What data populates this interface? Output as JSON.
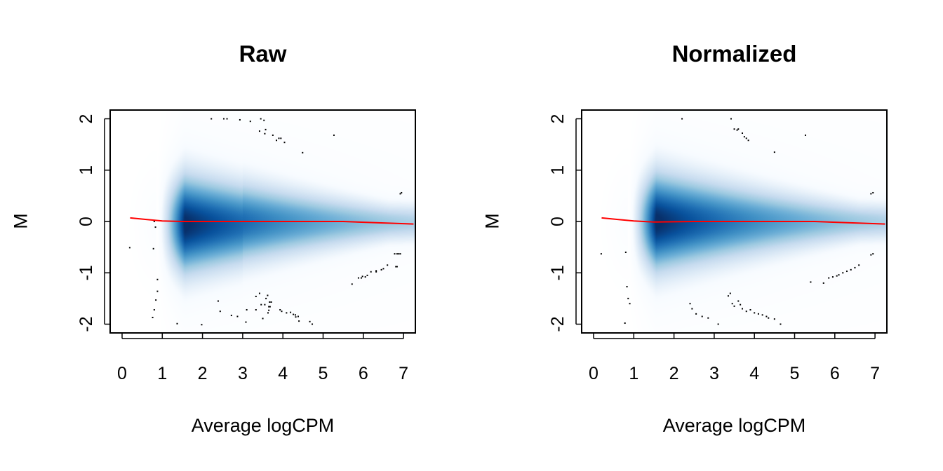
{
  "chart_data": [
    {
      "type": "scatter",
      "subtype": "smoothScatter density (MA plot)",
      "title": "Raw",
      "xlabel": "Average logCPM",
      "ylabel": "M",
      "xlim": [
        0,
        7.25
      ],
      "ylim": [
        -2,
        2
      ],
      "xticks": [
        "0",
        "1",
        "2",
        "3",
        "4",
        "5",
        "6",
        "7"
      ],
      "yticks": [
        "-2",
        "-1",
        "0",
        "1",
        "2"
      ],
      "density_color_low": "#ffffff",
      "density_color_high": "#08306b",
      "trend_color": "#ff0000",
      "trend_line": {
        "x": [
          0.2,
          0.6,
          1.0,
          1.5,
          2.5,
          3.5,
          4.5,
          5.5,
          6.2,
          7.25
        ],
        "y": [
          0.07,
          0.04,
          0.01,
          0.0,
          0.0,
          0.0,
          0.0,
          0.0,
          -0.02,
          -0.05
        ]
      },
      "center_shift": -0.05,
      "outliers": {
        "x": [
          2.22,
          2.53,
          2.61,
          2.93,
          3.19,
          3.45,
          3.53,
          3.42,
          3.57,
          3.55,
          3.75,
          3.9,
          3.95,
          3.84,
          4.04,
          4.49,
          5.27,
          6.95,
          6.92,
          0.19,
          0.78,
          0.8,
          0.83,
          0.88,
          0.88,
          0.84,
          0.8,
          0.76,
          1.37,
          1.98,
          2.39,
          2.44,
          2.72,
          2.87,
          3.08,
          3.1,
          3.33,
          3.42,
          3.33,
          3.58,
          3.62,
          3.67,
          3.71,
          3.46,
          3.55,
          3.65,
          3.68,
          3.65,
          3.63,
          3.5,
          3.93,
          3.97,
          4.09,
          4.19,
          4.26,
          4.31,
          4.32,
          4.38,
          4.4,
          4.67,
          4.73,
          5.72,
          5.88,
          5.95,
          5.98,
          6.05,
          6.1,
          6.19,
          6.32,
          6.32,
          6.45,
          6.5,
          6.6,
          6.81,
          6.84,
          6.78,
          6.84,
          6.88,
          6.92
        ],
        "y": [
          2.0,
          2.0,
          2.0,
          1.98,
          1.95,
          2.0,
          1.97,
          1.76,
          1.79,
          1.71,
          1.68,
          1.62,
          1.62,
          1.58,
          1.54,
          1.34,
          1.68,
          0.56,
          0.54,
          -0.51,
          -0.53,
          0.0,
          -0.11,
          -1.13,
          -1.36,
          -1.53,
          -1.72,
          -1.87,
          -1.99,
          -2.01,
          -1.55,
          -1.75,
          -1.83,
          -1.85,
          -1.96,
          -1.72,
          -1.72,
          -1.4,
          -1.46,
          -1.5,
          -1.44,
          -1.57,
          -1.57,
          -1.62,
          -1.62,
          -1.66,
          -1.66,
          -1.73,
          -1.78,
          -1.89,
          -1.72,
          -1.75,
          -1.78,
          -1.77,
          -1.81,
          -1.82,
          -1.86,
          -1.85,
          -1.94,
          -1.95,
          -2.0,
          -1.22,
          -1.1,
          -1.1,
          -1.07,
          -1.08,
          -1.05,
          -0.98,
          -0.96,
          -0.98,
          -0.94,
          -0.92,
          -0.85,
          -0.88,
          -0.88,
          -0.63,
          -0.63,
          -0.63,
          -0.63
        ]
      }
    },
    {
      "type": "scatter",
      "subtype": "smoothScatter density (MA plot)",
      "title": "Normalized",
      "xlabel": "Average logCPM",
      "ylabel": "M",
      "xlim": [
        0,
        7.25
      ],
      "ylim": [
        -2,
        2
      ],
      "xticks": [
        "0",
        "1",
        "2",
        "3",
        "4",
        "5",
        "6",
        "7"
      ],
      "yticks": [
        "-2",
        "-1",
        "0",
        "1",
        "2"
      ],
      "density_color_low": "#ffffff",
      "density_color_high": "#08306b",
      "trend_color": "#ff0000",
      "trend_line": {
        "x": [
          0.2,
          0.6,
          1.0,
          1.5,
          2.5,
          3.5,
          4.5,
          5.5,
          6.2,
          7.25
        ],
        "y": [
          0.07,
          0.04,
          0.01,
          -0.01,
          0.0,
          0.0,
          0.0,
          0.0,
          -0.02,
          -0.05
        ]
      },
      "center_shift": 0.0,
      "outliers": {
        "x": [
          2.2,
          3.42,
          3.5,
          3.57,
          3.6,
          3.7,
          3.75,
          3.8,
          3.85,
          4.5,
          5.27,
          6.9,
          6.95,
          0.19,
          0.8,
          0.83,
          0.86,
          0.9,
          0.78,
          2.4,
          2.45,
          2.55,
          2.7,
          2.85,
          3.1,
          3.35,
          3.4,
          3.45,
          3.5,
          3.6,
          3.65,
          3.7,
          3.8,
          3.9,
          4.0,
          4.1,
          4.2,
          4.3,
          4.35,
          4.5,
          4.65,
          5.4,
          5.72,
          5.85,
          5.95,
          6.05,
          6.1,
          6.2,
          6.3,
          6.4,
          6.5,
          6.6,
          6.9,
          6.95
        ],
        "y": [
          2.0,
          2.0,
          1.8,
          1.78,
          1.8,
          1.72,
          1.65,
          1.62,
          1.58,
          1.35,
          1.68,
          0.54,
          0.56,
          -0.63,
          -0.6,
          -1.27,
          -1.5,
          -1.6,
          -1.98,
          -1.6,
          -1.7,
          -1.8,
          -1.85,
          -1.88,
          -2.0,
          -1.45,
          -1.4,
          -1.6,
          -1.65,
          -1.55,
          -1.62,
          -1.7,
          -1.75,
          -1.72,
          -1.78,
          -1.8,
          -1.82,
          -1.85,
          -1.88,
          -1.9,
          -2.0,
          -1.18,
          -1.2,
          -1.1,
          -1.08,
          -1.06,
          -1.04,
          -1.0,
          -0.97,
          -0.94,
          -0.9,
          -0.85,
          -0.65,
          -0.63
        ]
      }
    }
  ]
}
